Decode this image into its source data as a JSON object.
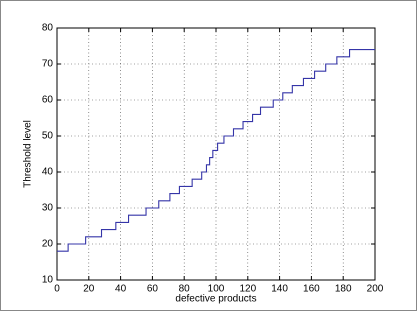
{
  "chart_data": {
    "type": "line",
    "xlabel": "defective products",
    "ylabel": "Threshold level",
    "x": [
      0,
      7,
      7,
      18,
      18,
      28,
      28,
      37,
      37,
      45,
      45,
      56,
      56,
      64,
      64,
      71,
      71,
      77,
      77,
      85,
      85,
      91,
      91,
      94,
      94,
      96,
      96,
      98,
      98,
      101,
      101,
      105,
      105,
      111,
      111,
      117,
      117,
      123,
      123,
      128,
      128,
      136,
      136,
      142,
      142,
      148,
      148,
      155,
      155,
      162,
      162,
      169,
      169,
      176,
      176,
      184,
      184,
      200
    ],
    "series": [
      {
        "color": "#3535a8",
        "values": [
          18,
          18,
          20,
          20,
          22,
          22,
          24,
          24,
          26,
          26,
          28,
          28,
          30,
          30,
          32,
          32,
          34,
          34,
          36,
          36,
          38,
          38,
          40,
          40,
          42,
          42,
          44,
          44,
          46,
          46,
          48,
          48,
          50,
          50,
          52,
          52,
          54,
          54,
          56,
          56,
          58,
          58,
          60,
          60,
          62,
          62,
          64,
          64,
          66,
          66,
          68,
          68,
          70,
          70,
          72,
          72,
          74,
          74
        ]
      }
    ],
    "xlim": [
      0,
      200
    ],
    "xticks": [
      0,
      20,
      40,
      60,
      80,
      100,
      120,
      140,
      160,
      180,
      200
    ],
    "ylim": [
      10,
      80
    ],
    "yticks": [
      10,
      20,
      30,
      40,
      50,
      60,
      70,
      80
    ],
    "grid": true
  }
}
